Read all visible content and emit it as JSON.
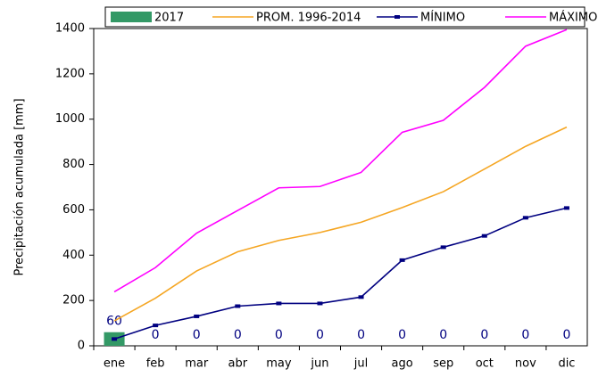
{
  "chart_data": {
    "type": "bar-line",
    "y_label": "Precipitación acumulada [mm]",
    "categories": [
      "ene",
      "feb",
      "mar",
      "abr",
      "may",
      "jun",
      "jul",
      "ago",
      "sep",
      "oct",
      "nov",
      "dic"
    ],
    "series": [
      {
        "name": "2017",
        "type": "bar",
        "color": "#339966",
        "values": [
          60,
          0,
          0,
          0,
          0,
          0,
          0,
          0,
          0,
          0,
          0,
          0
        ]
      },
      {
        "name": "PROM. 1996-2014",
        "type": "line",
        "color": "#f5a623",
        "values": [
          110,
          210,
          330,
          415,
          465,
          500,
          545,
          610,
          680,
          780,
          880,
          965
        ]
      },
      {
        "name": "MÍNIMO",
        "type": "line",
        "color": "#000080",
        "marker": true,
        "values": [
          30,
          90,
          130,
          175,
          187,
          187,
          215,
          378,
          435,
          485,
          565,
          608
        ]
      },
      {
        "name": "MÁXIMO",
        "type": "line",
        "color": "#ff00ff",
        "values": [
          238,
          345,
          497,
          597,
          697,
          703,
          765,
          942,
          995,
          1140,
          1322,
          1395
        ]
      }
    ],
    "ylim": [
      0,
      1400
    ],
    "yticks": [
      0,
      200,
      400,
      600,
      800,
      1000,
      1200,
      1400
    ],
    "grid": false
  }
}
